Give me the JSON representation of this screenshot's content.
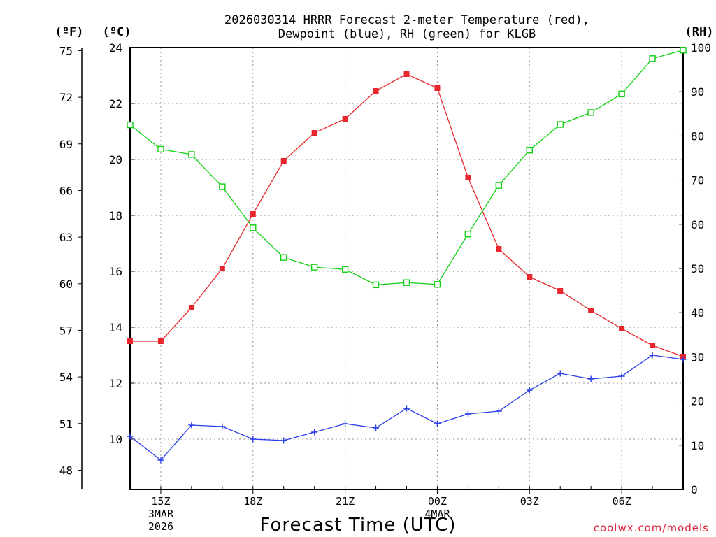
{
  "title_line1": "2026030314 HRRR Forecast 2-meter Temperature (red),",
  "title_line2": "Dewpoint (blue), RH (green) for KLGB",
  "units": {
    "left_f": "(ºF)",
    "left_c": "(ºC)",
    "right_rh": "(RH)"
  },
  "xlabel": "Forecast Time (UTC)",
  "credit": "coolwx.com/models",
  "colors": {
    "temperature": "#e8262b",
    "dewpoint": "#2a3ee8",
    "rh": "#12d012"
  },
  "chart_data": {
    "type": "line",
    "title": "2026030314 HRRR Forecast 2-meter Temperature (red), Dewpoint (blue), RH (green) for KLGB",
    "xlabel": "Forecast Time (UTC)",
    "x_hours_utc": [
      "14Z",
      "15Z",
      "16Z",
      "17Z",
      "18Z",
      "19Z",
      "20Z",
      "21Z",
      "22Z",
      "23Z",
      "00Z",
      "01Z",
      "02Z",
      "03Z",
      "04Z",
      "05Z",
      "06Z",
      "07Z",
      "08Z"
    ],
    "x_tick_labels": [
      {
        "hour_index": 1,
        "label": "15Z",
        "sub1": "3MAR",
        "sub2": "2026"
      },
      {
        "hour_index": 4,
        "label": "18Z",
        "sub1": "",
        "sub2": ""
      },
      {
        "hour_index": 7,
        "label": "21Z",
        "sub1": "",
        "sub2": ""
      },
      {
        "hour_index": 10,
        "label": "00Z",
        "sub1": "4MAR",
        "sub2": ""
      },
      {
        "hour_index": 13,
        "label": "03Z",
        "sub1": "",
        "sub2": ""
      },
      {
        "hour_index": 16,
        "label": "06Z",
        "sub1": "",
        "sub2": ""
      }
    ],
    "y_celsius": {
      "range": [
        8.2,
        24
      ],
      "ticks": [
        10,
        12,
        14,
        16,
        18,
        20,
        22,
        24
      ]
    },
    "y_fahrenheit": {
      "ticks": [
        48,
        51,
        54,
        57,
        60,
        63,
        66,
        69,
        72,
        75
      ]
    },
    "y_rh": {
      "range": [
        0,
        100
      ],
      "ticks": [
        0,
        10,
        20,
        30,
        40,
        50,
        60,
        70,
        80,
        90,
        100
      ]
    },
    "series": [
      {
        "name": "Temperature",
        "units": "C",
        "marker": "filled-square",
        "values": [
          13.5,
          13.5,
          14.7,
          16.1,
          18.05,
          19.95,
          20.95,
          21.45,
          22.45,
          23.05,
          22.55,
          19.35,
          16.8,
          15.8,
          15.3,
          14.6,
          13.95,
          13.35,
          12.95
        ]
      },
      {
        "name": "Dewpoint",
        "units": "C",
        "marker": "plus",
        "values": [
          10.1,
          9.25,
          10.5,
          10.45,
          10.0,
          9.95,
          10.25,
          10.55,
          10.4,
          11.1,
          10.55,
          10.9,
          11.0,
          11.75,
          12.35,
          12.15,
          12.25,
          13.0,
          12.85
        ]
      },
      {
        "name": "RH",
        "units": "%",
        "marker": "open-square",
        "values": [
          82.5,
          77,
          75.8,
          68.5,
          59.2,
          52.5,
          50.3,
          49.8,
          46.3,
          46.8,
          46.4,
          57.8,
          68.8,
          76.8,
          82.6,
          85.3,
          89.5,
          97.5,
          99.4
        ]
      }
    ]
  }
}
